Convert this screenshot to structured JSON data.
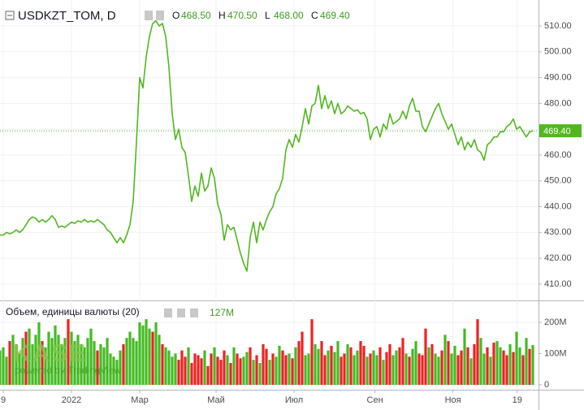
{
  "chart_data": [
    {
      "type": "line",
      "title": "USDKZT_TOM, D",
      "ohlc": [
        {
          "label": "O",
          "value": "468.50"
        },
        {
          "label": "H",
          "value": "470.50"
        },
        {
          "label": "L",
          "value": "468.00"
        },
        {
          "label": "C",
          "value": "469.40"
        }
      ],
      "color": "#52b71f",
      "grid": true,
      "values": [
        429,
        429,
        430,
        429.5,
        430,
        431,
        430,
        431,
        433,
        435,
        436,
        435.5,
        434,
        435,
        434,
        435,
        436.5,
        435,
        432,
        432.5,
        432,
        433,
        434,
        433.5,
        434.5,
        434,
        435,
        434,
        434.5,
        434,
        435,
        434,
        433,
        431,
        430,
        428,
        426,
        428,
        426,
        429,
        433,
        442,
        465,
        490,
        486,
        498,
        506,
        511,
        512,
        510,
        511,
        506,
        494,
        476,
        466,
        470,
        463,
        461,
        452,
        442,
        448,
        444,
        453,
        446,
        448,
        455,
        451,
        441,
        437,
        427,
        433,
        431,
        432,
        427,
        422,
        418,
        415,
        428,
        434,
        426,
        434,
        431,
        435,
        438,
        440,
        445,
        447,
        451,
        462,
        466,
        463,
        468,
        465,
        471,
        478,
        472,
        479,
        480,
        487,
        478,
        483,
        478,
        481,
        476,
        480,
        476,
        477,
        479,
        478,
        477,
        477.5,
        476,
        476.5,
        474,
        466,
        470,
        471,
        467,
        472,
        470,
        476,
        472,
        473,
        474,
        477,
        474,
        479,
        482,
        477,
        477,
        471,
        469,
        472,
        475,
        478,
        480,
        476,
        473,
        470,
        472,
        468,
        464,
        467,
        462,
        465,
        463,
        466,
        462,
        461,
        458,
        464,
        465,
        467,
        467,
        469,
        469,
        471,
        472,
        474,
        470,
        471,
        469,
        467,
        469,
        469.4
      ],
      "last_value": {
        "value": 469.4,
        "label": "469.40"
      },
      "xlim": [
        0,
        165.75
      ],
      "xticks": [
        {
          "value": 1,
          "label": "9"
        },
        {
          "value": 22,
          "label": "2022"
        },
        {
          "value": 43,
          "label": "Мар"
        },
        {
          "value": 66.5,
          "label": "Май"
        },
        {
          "value": 90.5,
          "label": "Июл"
        },
        {
          "value": 115.4,
          "label": "Сен"
        },
        {
          "value": 139.4,
          "label": "Ноя"
        },
        {
          "value": 159.2,
          "label": "19"
        }
      ],
      "ylim": [
        404.3,
        518.5
      ],
      "yticks": [
        {
          "value": 410,
          "label": "410.00"
        },
        {
          "value": 420,
          "label": "420.00"
        },
        {
          "value": 430,
          "label": "430.00"
        },
        {
          "value": 440,
          "label": "440.00"
        },
        {
          "value": 450,
          "label": "450.00"
        },
        {
          "value": 460,
          "label": "460.00"
        },
        {
          "value": 470,
          "label": "470.00"
        },
        {
          "value": 480,
          "label": "480.00"
        },
        {
          "value": 490,
          "label": "490.00"
        },
        {
          "value": 500,
          "label": "500.00"
        },
        {
          "value": 510,
          "label": "510.00"
        }
      ]
    },
    {
      "type": "bar",
      "title": "Объем, единицы валюты (20)",
      "last_value": {
        "value": 127,
        "label": "127M"
      },
      "grid": true,
      "values": [
        110,
        120,
        90,
        140,
        160,
        130,
        100,
        150,
        170,
        180,
        130,
        160,
        200,
        140,
        120,
        170,
        150,
        190,
        160,
        130,
        150,
        210,
        170,
        140,
        160,
        130,
        120,
        150,
        180,
        140,
        110,
        130,
        120,
        150,
        100,
        90,
        80,
        110,
        130,
        150,
        170,
        150,
        140,
        200,
        190,
        210,
        180,
        170,
        200,
        160,
        130,
        120,
        110,
        90,
        100,
        80,
        110,
        90,
        120,
        70,
        100,
        95,
        85,
        110,
        60,
        100,
        120,
        90,
        80,
        110,
        95,
        70,
        120,
        100,
        85,
        90,
        105,
        120,
        80,
        95,
        70,
        130,
        115,
        80,
        100,
        90,
        125,
        110,
        95,
        100,
        85,
        120,
        140,
        170,
        95,
        100,
        210,
        130,
        115,
        140,
        95,
        110,
        125,
        105,
        140,
        90,
        100,
        130,
        120,
        95,
        110,
        140,
        125,
        90,
        100,
        110,
        95,
        120,
        80,
        105,
        130,
        95,
        110,
        120,
        150,
        100,
        90,
        115,
        140,
        100,
        95,
        180,
        120,
        130,
        100,
        90,
        110,
        160,
        140,
        100,
        125,
        95,
        110,
        180,
        120,
        85,
        130,
        210,
        150,
        100,
        120,
        90,
        135,
        140,
        120,
        110,
        95,
        130,
        105,
        170,
        120,
        95,
        150,
        115,
        127
      ],
      "colors": [
        "#4b2",
        "#4b2",
        "#4b2",
        "#e22",
        "#4b2",
        "#4b2",
        "#4b2",
        "#4b2",
        "#e22",
        "#4b2",
        "#4b2",
        "#4b2",
        "#4b2",
        "#e22",
        "#4b2",
        "#4b2",
        "#4b2",
        "#4b2",
        "#4b2",
        "#4b2",
        "#4b2",
        "#e22",
        "#4b2",
        "#4b2",
        "#4b2",
        "#4b2",
        "#4b2",
        "#4b2",
        "#4b2",
        "#4b2",
        "#e22",
        "#4b2",
        "#4b2",
        "#4b2",
        "#4b2",
        "#4b2",
        "#4b2",
        "#4b2",
        "#e22",
        "#4b2",
        "#4b2",
        "#4b2",
        "#4b2",
        "#4b2",
        "#4b2",
        "#4b2",
        "#4b2",
        "#e22",
        "#4b2",
        "#4b2",
        "#e22",
        "#4b2",
        "#4b2",
        "#4b2",
        "#4b2",
        "#e22",
        "#e22",
        "#e22",
        "#4b2",
        "#e22",
        "#e22",
        "#e22",
        "#e22",
        "#4b2",
        "#e22",
        "#e22",
        "#4b2",
        "#e22",
        "#e22",
        "#e22",
        "#4b2",
        "#e22",
        "#4b2",
        "#e22",
        "#e22",
        "#4b2",
        "#4b2",
        "#e22",
        "#4b2",
        "#e22",
        "#4b2",
        "#e22",
        "#e22",
        "#4b2",
        "#e22",
        "#4b2",
        "#4b2",
        "#e22",
        "#e22",
        "#4b2",
        "#e22",
        "#4b2",
        "#e22",
        "#e22",
        "#4b2",
        "#4b2",
        "#e22",
        "#4b2",
        "#4b2",
        "#e22",
        "#e22",
        "#4b2",
        "#e22",
        "#4b2",
        "#4b2",
        "#e22",
        "#e22",
        "#4b2",
        "#e22",
        "#4b2",
        "#4b2",
        "#e22",
        "#e22",
        "#4b2",
        "#e22",
        "#4b2",
        "#4b2",
        "#e22",
        "#4b2",
        "#e22",
        "#e22",
        "#4b2",
        "#4b2",
        "#e22",
        "#e22",
        "#4b2",
        "#e22",
        "#4b2",
        "#4b2",
        "#e22",
        "#e22",
        "#e22",
        "#4b2",
        "#e22",
        "#4b2",
        "#4b2",
        "#e22",
        "#4b2",
        "#e22",
        "#4b2",
        "#4b2",
        "#e22",
        "#e22",
        "#4b2",
        "#e22",
        "#4b2",
        "#e22",
        "#e22",
        "#4b2",
        "#4b2",
        "#e22",
        "#4b2",
        "#e22",
        "#4b2",
        "#4b2",
        "#e22",
        "#e22",
        "#4b2",
        "#e22",
        "#4b2",
        "#4b2",
        "#e22",
        "#4b2",
        "#e22",
        "#4b2"
      ],
      "xlim": [
        0,
        165.75
      ],
      "ylim": [
        -15.6,
        265
      ],
      "yticks": [
        0,
        {
          "value": 100,
          "label": "100M"
        },
        {
          "value": 200,
          "label": "200M"
        }
      ]
    }
  ],
  "watermark": {
    "logo": "KASE",
    "credit": "powered by TradingView"
  }
}
